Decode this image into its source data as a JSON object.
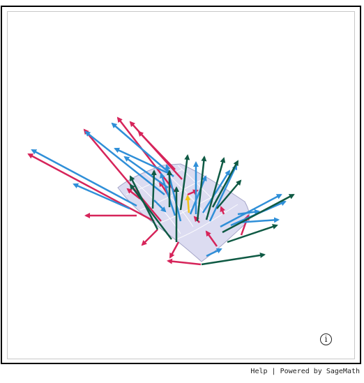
{
  "viewer": {
    "info_symbol": "i",
    "colors": {
      "surface": "#d9d9f0",
      "surface_edge": "#9b9bc2",
      "grid": "#ffffff",
      "arrow_red": "#d6245a",
      "arrow_blue": "#2f8fd8",
      "arrow_green": "#0f5a44",
      "arrow_yellow": "#f2c318"
    },
    "icons": [
      "info-icon"
    ]
  },
  "footer": {
    "help_label": "Help",
    "separator": "|",
    "powered_label": "Powered by SageMath"
  }
}
